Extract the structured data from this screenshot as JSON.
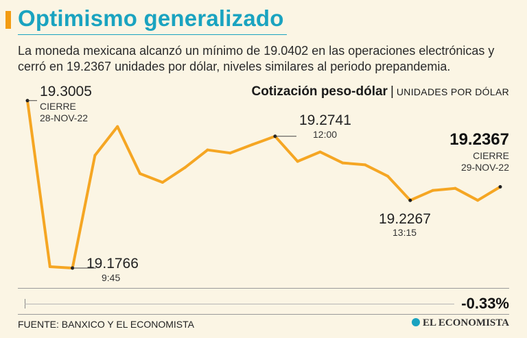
{
  "header": {
    "title": "Optimismo generalizado",
    "subtitle": "La moneda mexicana alcanzó un mínimo de 19.0402 en las operaciones electrónicas y cerró en 19.2367 unidades por dólar, niveles similares al periodo prepandemia."
  },
  "chart_header": {
    "title": "Cotización peso-dólar",
    "separator": "|",
    "units": "UNIDADES POR DÓLAR"
  },
  "annotations": {
    "open_value": "19.3005",
    "open_label": "CIERRE",
    "open_date": "28-NOV-22",
    "low1_value": "19.1766",
    "low1_time": "9:45",
    "high_value": "19.2741",
    "high_time": "12:00",
    "low2_value": "19.2267",
    "low2_time": "13:15",
    "close_value": "19.2367",
    "close_label": "CIERRE",
    "close_date": "29-NOV-22"
  },
  "footer": {
    "change": "-0.33%",
    "source": "FUENTE: BANXICO Y EL ECONOMISTA",
    "brand": "EL ECONOMISTA"
  },
  "colors": {
    "line": "#f5a623",
    "title": "#1aa3c0",
    "background": "#fbf5e4"
  },
  "chart_data": {
    "type": "line",
    "title": "Cotización peso-dólar",
    "ylabel": "Unidades por dólar",
    "xlabel": "",
    "ylim": [
      19.17,
      19.31
    ],
    "series": [
      {
        "name": "Peso-dólar",
        "values": [
          19.3005,
          19.1776,
          19.1766,
          19.26,
          19.2813,
          19.2465,
          19.24,
          19.251,
          19.264,
          19.2617,
          19.268,
          19.2741,
          19.2555,
          19.2625,
          19.2544,
          19.253,
          19.2446,
          19.2267,
          19.234,
          19.2356,
          19.2267,
          19.2367
        ]
      }
    ],
    "annotated_points": [
      {
        "index": 0,
        "value": 19.3005,
        "label": "CIERRE 28-NOV-22"
      },
      {
        "index": 2,
        "value": 19.1766,
        "label": "9:45"
      },
      {
        "index": 11,
        "value": 19.2741,
        "label": "12:00"
      },
      {
        "index": 17,
        "value": 19.2267,
        "label": "13:15"
      },
      {
        "index": 21,
        "value": 19.2367,
        "label": "CIERRE 29-NOV-22"
      }
    ],
    "daily_change_percent": -0.33
  }
}
